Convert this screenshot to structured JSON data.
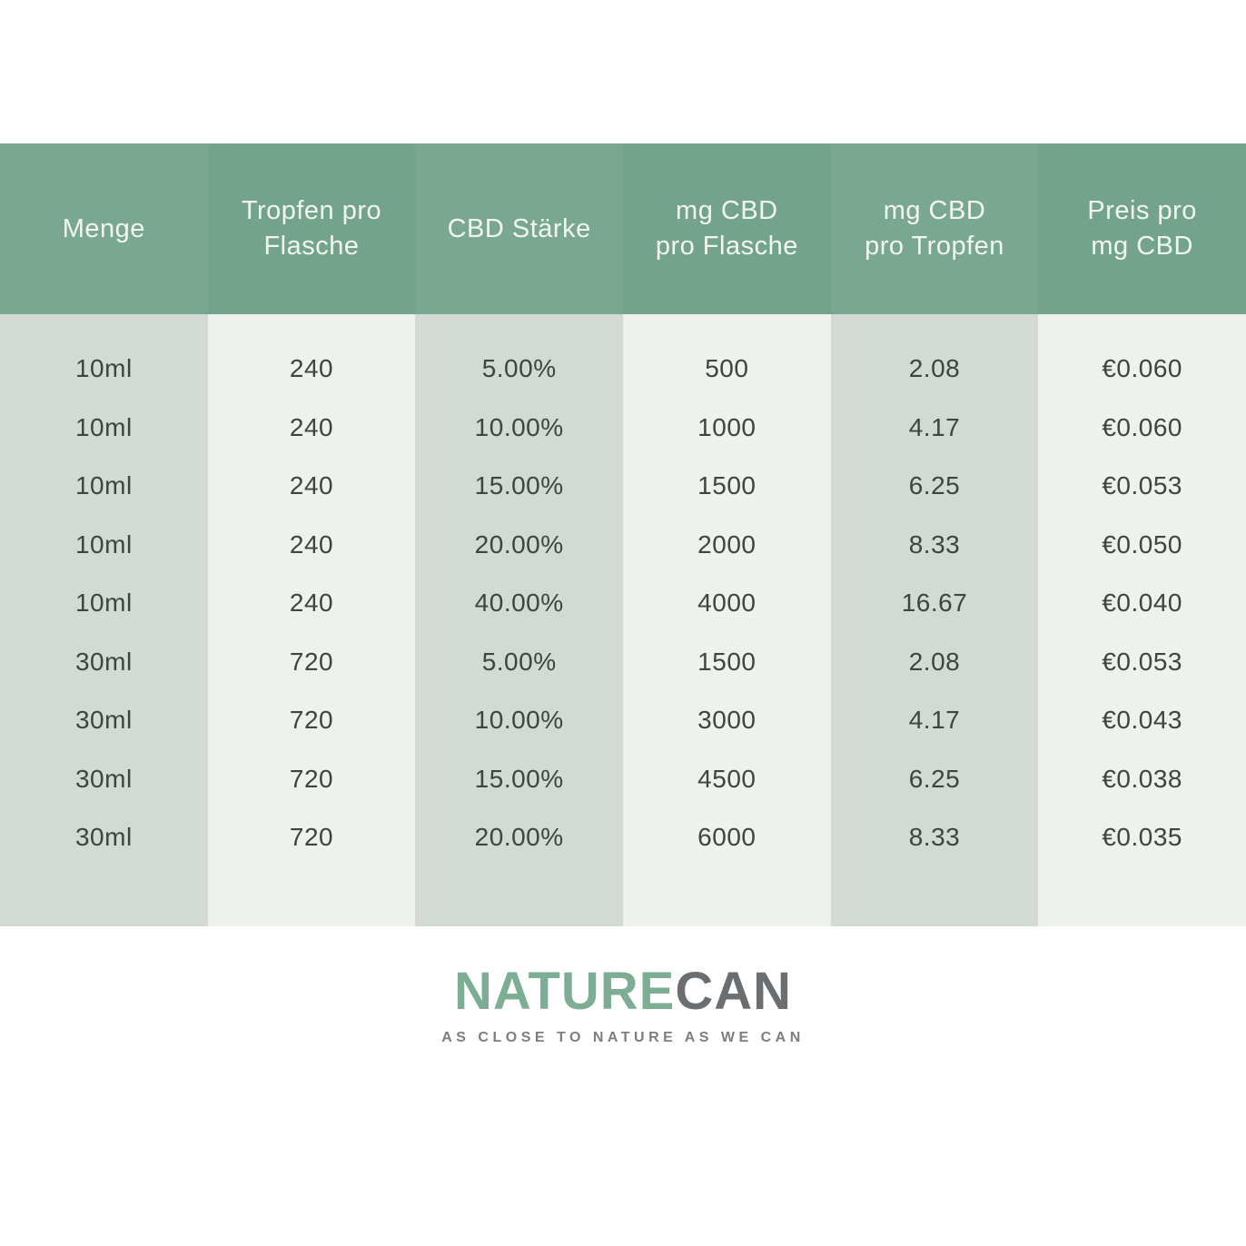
{
  "chart_data": {
    "type": "table",
    "columns": [
      "Menge",
      "Tropfen pro\nFlasche",
      "CBD Stärke",
      "mg CBD\npro Flasche",
      "mg CBD\npro Tropfen",
      "Preis pro\nmg CBD"
    ],
    "rows": [
      [
        "10ml",
        "240",
        "5.00%",
        "500",
        "2.08",
        "€0.060"
      ],
      [
        "10ml",
        "240",
        "10.00%",
        "1000",
        "4.17",
        "€0.060"
      ],
      [
        "10ml",
        "240",
        "15.00%",
        "1500",
        "6.25",
        "€0.053"
      ],
      [
        "10ml",
        "240",
        "20.00%",
        "2000",
        "8.33",
        "€0.050"
      ],
      [
        "10ml",
        "240",
        "40.00%",
        "4000",
        "16.67",
        "€0.040"
      ],
      [
        "30ml",
        "720",
        "5.00%",
        "1500",
        "2.08",
        "€0.053"
      ],
      [
        "30ml",
        "720",
        "10.00%",
        "3000",
        "4.17",
        "€0.043"
      ],
      [
        "30ml",
        "720",
        "15.00%",
        "4500",
        "6.25",
        "€0.038"
      ],
      [
        "30ml",
        "720",
        "20.00%",
        "6000",
        "8.33",
        "€0.035"
      ]
    ],
    "title": "",
    "layout_hints": {
      "header_background": "#76a58c",
      "column_band_dark": "#d2dad3",
      "column_band_light": "#eef1ec",
      "grid": "off",
      "legend": "none"
    }
  },
  "logo": {
    "part1": "NATURE",
    "part2": "CAN",
    "tagline": "AS CLOSE TO NATURE AS WE CAN"
  },
  "colors": {
    "header_green": "#76a58c",
    "band_dark": "#d2dad3",
    "band_light": "#eef1ec",
    "cell_text": "#3e4442",
    "logo_green": "#7dae94",
    "logo_gray": "#6b6e70",
    "tagline_gray": "#7b7f81"
  }
}
